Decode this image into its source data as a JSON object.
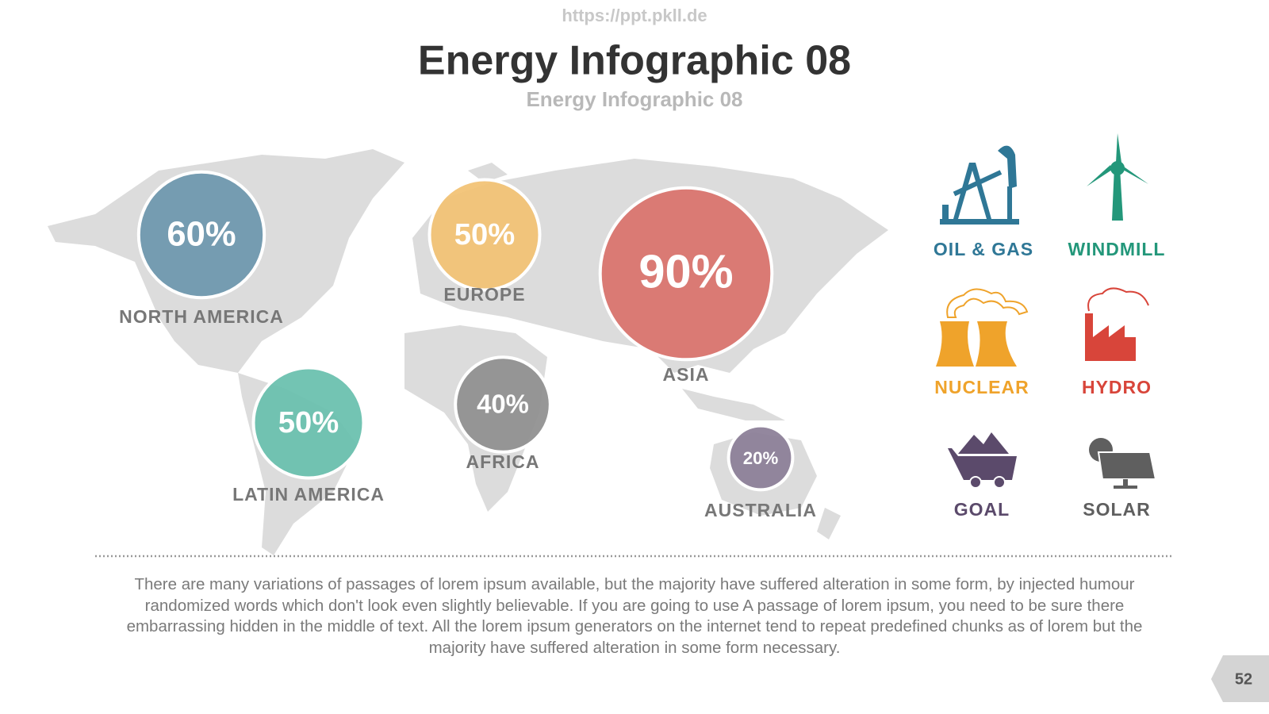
{
  "header": {
    "url": "https://ppt.pkll.de",
    "title": "Energy Infographic 08",
    "subtitle": "Energy Infographic 08"
  },
  "regions": [
    {
      "name": "NORTH AMERICA",
      "value": 60,
      "value_label": "60%",
      "color": "#6b96ad"
    },
    {
      "name": "EUROPE",
      "value": 50,
      "value_label": "50%",
      "color": "#f2c172"
    },
    {
      "name": "ASIA",
      "value": 90,
      "value_label": "90%",
      "color": "#d9716a"
    },
    {
      "name": "LATIN AMERICA",
      "value": 50,
      "value_label": "50%",
      "color": "#67bfac"
    },
    {
      "name": "AFRICA",
      "value": 40,
      "value_label": "40%",
      "color": "#8e8e8e"
    },
    {
      "name": "AUSTRALIA",
      "value": 20,
      "value_label": "20%",
      "color": "#8a7d96"
    }
  ],
  "energy": [
    {
      "label": "OIL & GAS",
      "color": "#2f7796"
    },
    {
      "label": "WINDMILL",
      "color": "#23977a"
    },
    {
      "label": "NUCLEAR",
      "color": "#efa32b"
    },
    {
      "label": "HYDRO",
      "color": "#d8453a"
    },
    {
      "label": "GOAL",
      "color": "#5b4a6b"
    },
    {
      "label": "SOLAR",
      "color": "#5f5f5f"
    }
  ],
  "body": "There are many variations of passages of lorem ipsum available, but the majority have suffered alteration in some form, by injected humour randomized words which don't look even slightly believable. If you are going to use A passage of lorem ipsum, you need to be sure there embarrassing hidden in the middle of text. All the lorem ipsum generators on the internet tend to repeat predefined chunks as of lorem but the majority have suffered alteration in some form  necessary.",
  "page_number": 52
}
